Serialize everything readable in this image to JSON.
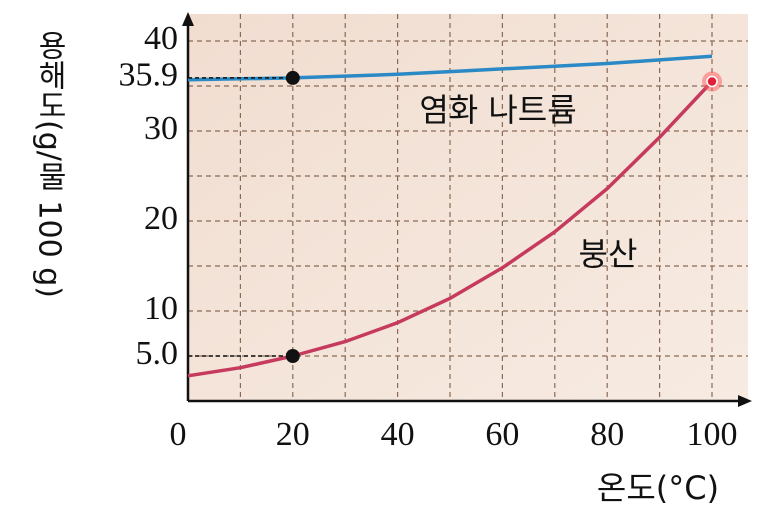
{
  "chart_data": {
    "type": "line",
    "x_label": "온도(°C)",
    "y_label": "용해도(g/물 100 g)",
    "x": [
      0,
      10,
      20,
      30,
      40,
      50,
      60,
      70,
      80,
      90,
      100
    ],
    "series": [
      {
        "name": "염화 나트륨",
        "color": "#2b8ac6",
        "values": [
          35.7,
          35.8,
          35.9,
          36.1,
          36.3,
          36.6,
          36.9,
          37.2,
          37.5,
          37.9,
          38.3
        ]
      },
      {
        "name": "붕산",
        "color": "#c63a5e",
        "values": [
          2.8,
          3.7,
          5.0,
          6.6,
          8.7,
          11.4,
          14.8,
          18.8,
          23.6,
          29.3,
          35.5
        ]
      }
    ],
    "xlim": [
      0,
      100
    ],
    "xticks": [
      0,
      20,
      40,
      60,
      80,
      100
    ],
    "x_minor_ticks": [
      10,
      30,
      50,
      70,
      90
    ],
    "ylim": [
      0,
      40
    ],
    "yticks": [
      {
        "value": 5,
        "label": "5.0"
      },
      10,
      20,
      30,
      35.9,
      40
    ],
    "y_minor_ticks": [
      15,
      25,
      35
    ],
    "grid": true
  }
}
